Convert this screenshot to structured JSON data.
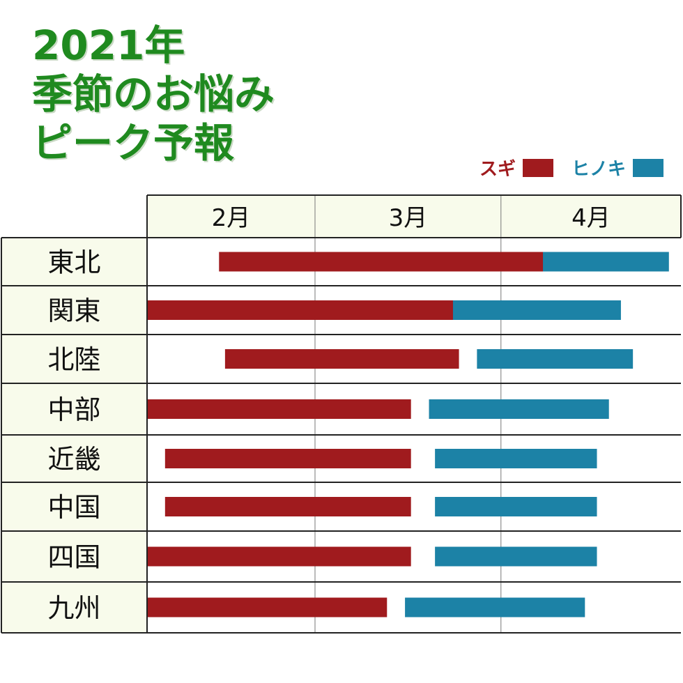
{
  "title": {
    "line1": "2021年",
    "line2": "季節のお悩み",
    "line3": "ピーク予報"
  },
  "colors": {
    "title": "#1f8a1f",
    "sugi": "#a01b1e",
    "hinoki": "#1c82a6",
    "header_bg": "#f8fbeb"
  },
  "chart_data": {
    "type": "gantt",
    "x_axis": "date",
    "x_range": [
      "2021-02-01",
      "2021-04-30"
    ],
    "months": [
      {
        "label": "2月",
        "start": "2021-02-01",
        "end": "2021-02-28"
      },
      {
        "label": "3月",
        "start": "2021-03-01",
        "end": "2021-03-31"
      },
      {
        "label": "4月",
        "start": "2021-04-01",
        "end": "2021-04-30"
      }
    ],
    "legend": [
      {
        "name": "スギ",
        "color": "#a01b1e"
      },
      {
        "name": "ヒノキ",
        "color": "#1c82a6"
      }
    ],
    "regions": [
      {
        "name": "東北",
        "sugi": [
          "2021-02-13",
          "2021-04-08"
        ],
        "hinoki": [
          "2021-04-08",
          "2021-04-28"
        ]
      },
      {
        "name": "関東",
        "sugi": [
          "2021-02-01",
          "2021-03-24"
        ],
        "hinoki": [
          "2021-03-24",
          "2021-04-20"
        ]
      },
      {
        "name": "北陸",
        "sugi": [
          "2021-02-14",
          "2021-03-24"
        ],
        "hinoki": [
          "2021-03-28",
          "2021-04-22"
        ]
      },
      {
        "name": "中部",
        "sugi": [
          "2021-02-01",
          "2021-03-16"
        ],
        "hinoki": [
          "2021-03-20",
          "2021-04-18"
        ]
      },
      {
        "name": "近畿",
        "sugi": [
          "2021-02-04",
          "2021-03-16"
        ],
        "hinoki": [
          "2021-03-21",
          "2021-04-16"
        ]
      },
      {
        "name": "中国",
        "sugi": [
          "2021-02-04",
          "2021-03-16"
        ],
        "hinoki": [
          "2021-03-21",
          "2021-04-16"
        ]
      },
      {
        "name": "四国",
        "sugi": [
          "2021-02-01",
          "2021-03-16"
        ],
        "hinoki": [
          "2021-03-21",
          "2021-04-16"
        ]
      },
      {
        "name": "九州",
        "sugi": [
          "2021-02-01",
          "2021-03-12"
        ],
        "hinoki": [
          "2021-03-16",
          "2021-04-14"
        ]
      }
    ]
  }
}
